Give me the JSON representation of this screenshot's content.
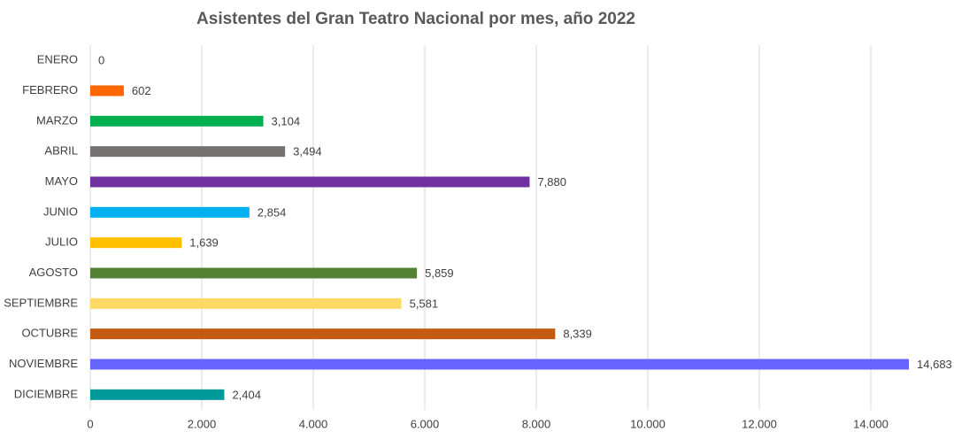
{
  "chart_data": {
    "type": "hbar",
    "title": "Asistentes del Gran Teatro Nacional por mes, año 2022",
    "categories": [
      "ENERO",
      "FEBRERO",
      "MARZO",
      "ABRIL",
      "MAYO",
      "JUNIO",
      "JULIO",
      "AGOSTO",
      "SEPTIEMBRE",
      "OCTUBRE",
      "NOVIEMBRE",
      "DICIEMBRE"
    ],
    "values": [
      0,
      602,
      3104,
      3494,
      7880,
      2854,
      1639,
      5859,
      5581,
      8339,
      14683,
      2404
    ],
    "value_labels": [
      "0",
      "602",
      "3,104",
      "3,494",
      "7,880",
      "2,854",
      "1,639",
      "5,859",
      "5,581",
      "8,339",
      "14,683",
      "2,404"
    ],
    "colors": [
      "#4472c4",
      "#ff6600",
      "#00b050",
      "#767171",
      "#7030a0",
      "#00b0f0",
      "#ffc000",
      "#548235",
      "#ffd966",
      "#c55a11",
      "#6666ff",
      "#009999"
    ],
    "xlim": [
      0,
      15000
    ],
    "xticks": [
      0,
      {
        "value": 2000,
        "label": "2.000"
      },
      {
        "value": 4000,
        "label": "4.000"
      },
      {
        "value": 6000,
        "label": "6.000"
      },
      {
        "value": 8000,
        "label": "8.000"
      },
      {
        "value": 10000,
        "label": "10.000"
      },
      {
        "value": 12000,
        "label": "12.000"
      },
      {
        "value": 14000,
        "label": "14.000"
      }
    ],
    "grid": true
  }
}
